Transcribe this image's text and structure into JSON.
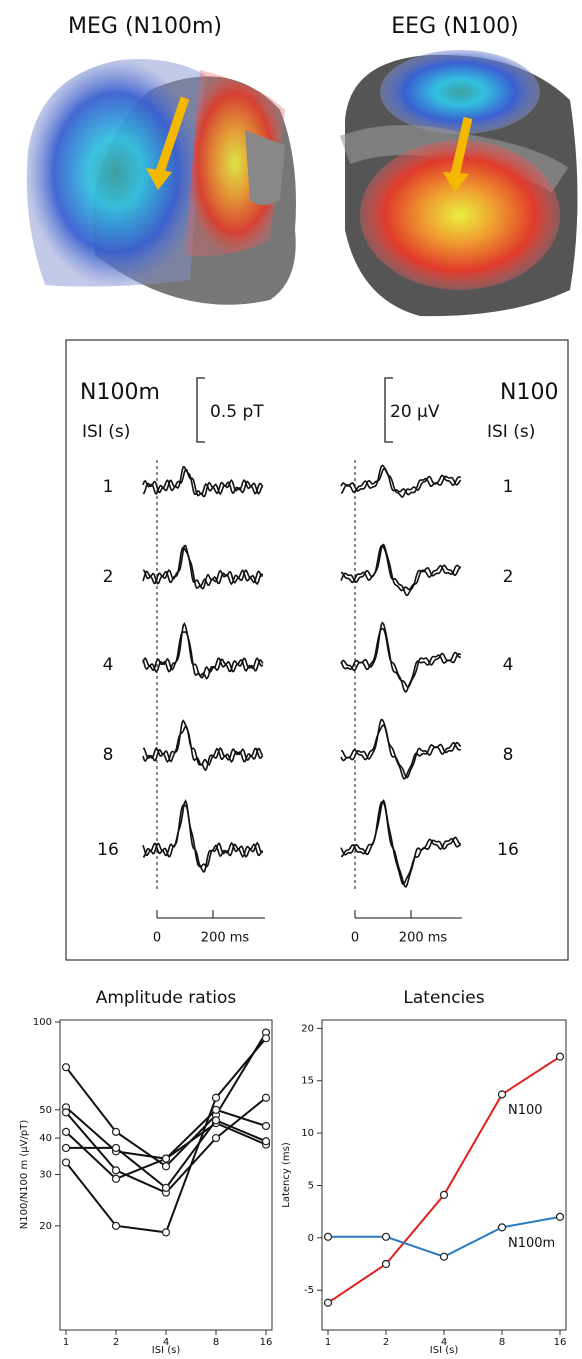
{
  "figure": {
    "meg_title": "MEG (N100m)",
    "eeg_title": "EEG (N100)",
    "waveforms": {
      "left_title": "N100m",
      "right_title": "N100",
      "left_isi_label": "ISI (s)",
      "right_isi_label": "ISI (s)",
      "left_scale": "0.5 pT",
      "right_scale": "20 μV",
      "isi": [
        "1",
        "2",
        "4",
        "8",
        "16"
      ],
      "left_time_ticks": [
        "0",
        "200 ms"
      ],
      "right_time_ticks": [
        "0",
        "200 ms"
      ]
    }
  },
  "chart_data": [
    {
      "type": "line",
      "title": "Amplitude ratios",
      "xlabel": "ISI (s)",
      "ylabel": "N100/N100 m (μV/pT)",
      "x": [
        1,
        2,
        4,
        8,
        16
      ],
      "xlim": [
        1,
        16
      ],
      "xticks": [
        1,
        2,
        4,
        8,
        16
      ],
      "xscale": "log",
      "ylim": [
        9,
        100
      ],
      "yticks": [
        20,
        30,
        40,
        50,
        100
      ],
      "yscale": "log",
      "legend": "none",
      "series": [
        {
          "color": "#111111",
          "values": [
            70,
            42,
            32,
            48,
            92
          ]
        },
        {
          "color": "#111111",
          "values": [
            51,
            36,
            34,
            45,
            38
          ]
        },
        {
          "color": "#111111",
          "values": [
            49,
            31,
            26,
            40,
            55
          ]
        },
        {
          "color": "#111111",
          "values": [
            42,
            29,
            34,
            50,
            44
          ]
        },
        {
          "color": "#111111",
          "values": [
            37,
            37,
            27,
            46,
            39
          ]
        },
        {
          "color": "#111111",
          "values": [
            33,
            20,
            19,
            55,
            88
          ]
        }
      ]
    },
    {
      "type": "line",
      "title": "Latencies",
      "xlabel": "ISI (s)",
      "ylabel": "Latency (ms)",
      "x": [
        1,
        2,
        4,
        8,
        16
      ],
      "xlim": [
        1,
        16
      ],
      "xticks": [
        1,
        2,
        4,
        8,
        16
      ],
      "xscale": "log",
      "ylim": [
        -8.8,
        20.8
      ],
      "yticks": [
        -5,
        0,
        5,
        10,
        15,
        20
      ],
      "yscale": "linear",
      "legend": "inline",
      "series": [
        {
          "name": "N100",
          "color": "#e0201b",
          "values": [
            -6.2,
            -2.5,
            4.1,
            13.7,
            17.3
          ]
        },
        {
          "name": "N100m",
          "color": "#2a7bc0",
          "values": [
            0.1,
            0.1,
            -1.8,
            1.0,
            2.0
          ]
        }
      ]
    }
  ]
}
